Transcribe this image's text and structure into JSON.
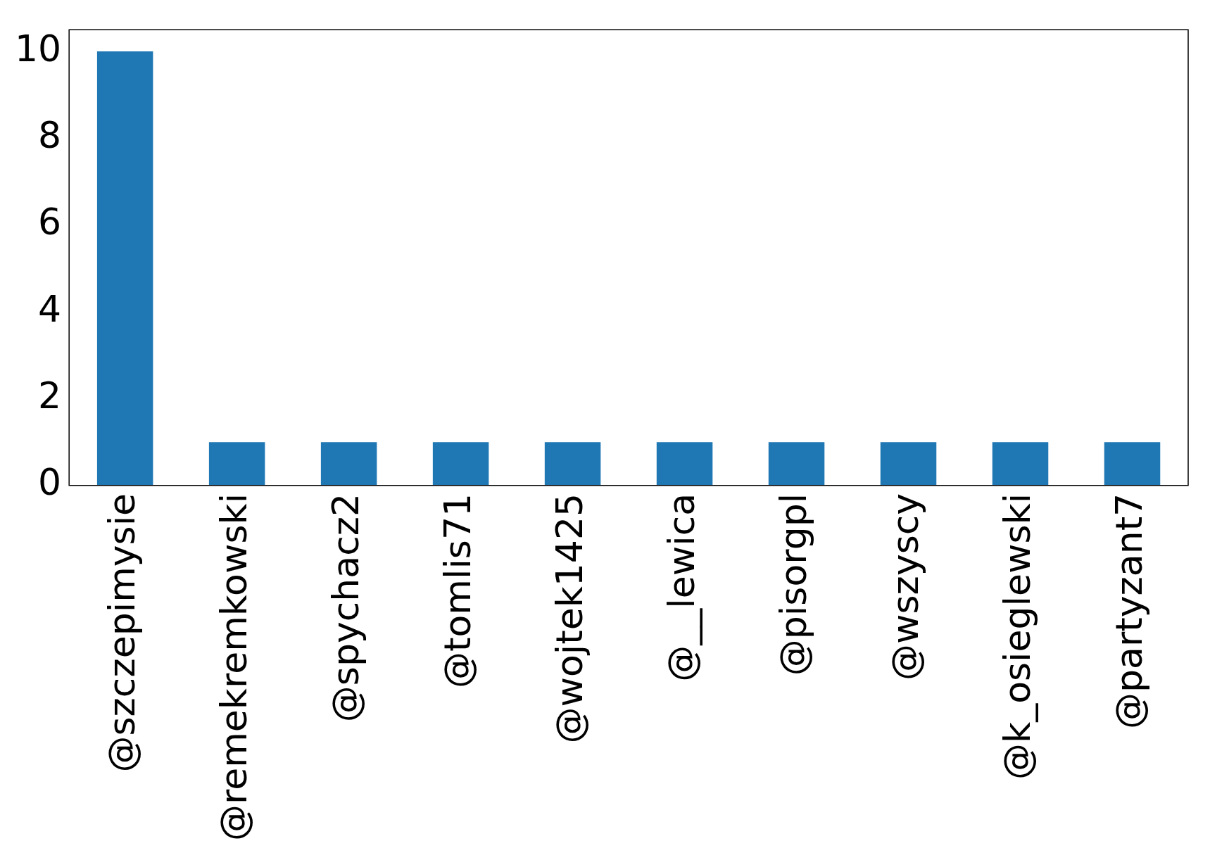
{
  "chart_data": {
    "type": "bar",
    "categories": [
      "@szczepimysie",
      "@remekremkowski",
      "@spychacz2",
      "@tomlis71",
      "@wojtek1425",
      "@__lewica",
      "@pisorgpl",
      "@wszyscy",
      "@k_osieglewski",
      "@partyzant7"
    ],
    "values": [
      10,
      1,
      1,
      1,
      1,
      1,
      1,
      1,
      1,
      1
    ],
    "color": "#1f77b4",
    "ylim": [
      0,
      10.5
    ],
    "yticks": [
      0,
      2,
      4,
      6,
      8,
      10
    ],
    "grid": false,
    "legend": false
  }
}
